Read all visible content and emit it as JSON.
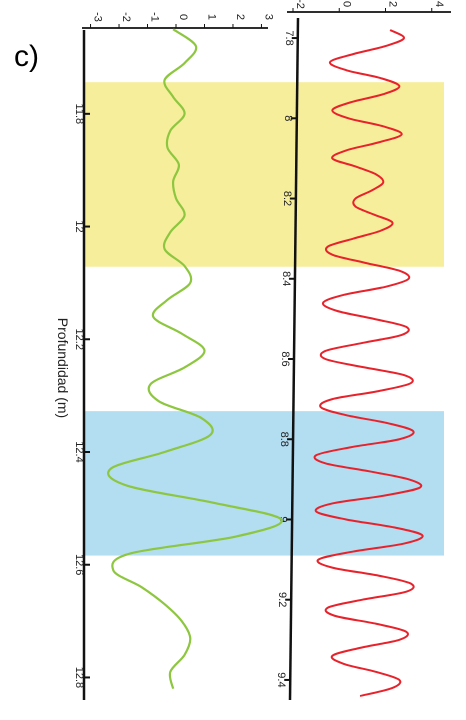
{
  "panel_label": "c)",
  "chart_data": [
    {
      "type": "line",
      "title": "",
      "orientation": "vertical-depth",
      "ylabel": "",
      "xlabel": "",
      "depth_range": [
        7.75,
        9.45
      ],
      "depth_ticks": [
        "7.8",
        "8",
        "8.2",
        "8.4",
        "8.6",
        "8.8",
        "9",
        "9.2",
        "9.4"
      ],
      "amplitude_range": [
        -2,
        4.4
      ],
      "amplitude_ticks": [
        "-2",
        "0",
        "2",
        "4"
      ],
      "series": [
        {
          "color": "#e8222b",
          "x": [
            7.78,
            7.8,
            7.82,
            7.84,
            7.86,
            7.88,
            7.9,
            7.92,
            7.94,
            7.96,
            7.98,
            8.0,
            8.02,
            8.04,
            8.06,
            8.08,
            8.1,
            8.12,
            8.14,
            8.16,
            8.18,
            8.2,
            8.22,
            8.24,
            8.26,
            8.28,
            8.3,
            8.32,
            8.34,
            8.36,
            8.38,
            8.4,
            8.42,
            8.44,
            8.46,
            8.48,
            8.5,
            8.52,
            8.54,
            8.56,
            8.58,
            8.6,
            8.62,
            8.64,
            8.66,
            8.68,
            8.7,
            8.72,
            8.74,
            8.76,
            8.78,
            8.8,
            8.82,
            8.84,
            8.86,
            8.88,
            8.9,
            8.92,
            8.94,
            8.96,
            8.98,
            9.0,
            9.02,
            9.04,
            9.06,
            9.08,
            9.1,
            9.12,
            9.14,
            9.16,
            9.18,
            9.2,
            9.22,
            9.24,
            9.26,
            9.28,
            9.3,
            9.32,
            9.34,
            9.36,
            9.38,
            9.4,
            9.42,
            9.44
          ],
          "values": [
            2.2,
            2.8,
            2.0,
            0.6,
            -0.4,
            0.3,
            1.8,
            2.6,
            1.9,
            0.5,
            -0.3,
            0.4,
            1.9,
            2.7,
            1.7,
            0.3,
            -0.3,
            0.7,
            1.6,
            1.9,
            1.4,
            0.7,
            0.7,
            1.5,
            2.3,
            1.8,
            0.6,
            -0.5,
            -0.3,
            1.1,
            2.6,
            3.0,
            2.0,
            0.2,
            -0.7,
            -0.1,
            1.5,
            2.9,
            2.7,
            1.0,
            -0.6,
            -0.6,
            1.0,
            2.8,
            3.1,
            1.7,
            -0.3,
            -0.8,
            0.3,
            2.1,
            3.2,
            2.6,
            0.5,
            -1.0,
            -0.6,
            1.3,
            3.0,
            3.5,
            2.0,
            -0.3,
            -1.0,
            0.3,
            2.4,
            3.6,
            2.8,
            0.6,
            -0.9,
            -0.3,
            1.7,
            3.1,
            2.9,
            1.0,
            -0.5,
            -0.2,
            1.6,
            2.9,
            2.6,
            0.9,
            -0.3,
            0.2,
            1.6,
            2.6,
            2.3,
            0.9
          ]
        },
        {
          "color": "#8dc63f",
          "x": [
            11.65,
            11.68,
            11.71,
            11.74,
            11.77,
            11.8,
            11.83,
            11.86,
            11.89,
            11.92,
            11.95,
            11.98,
            12.01,
            12.04,
            12.07,
            12.1,
            12.13,
            12.16,
            12.19,
            12.22,
            12.25,
            12.28,
            12.31,
            12.34,
            12.37,
            12.4,
            12.43,
            12.46,
            12.49,
            12.52,
            12.55,
            12.58,
            12.61,
            12.64,
            12.67,
            12.7,
            12.73,
            12.76,
            12.79,
            12.82
          ],
          "values": [
            -0.1,
            0.7,
            0.3,
            -0.4,
            -0.1,
            0.3,
            -0.2,
            -0.3,
            0.1,
            -0.1,
            0.0,
            0.3,
            -0.2,
            -0.4,
            0.3,
            0.5,
            -0.3,
            -0.8,
            0.2,
            1.0,
            0.3,
            -0.9,
            -0.6,
            0.9,
            1.2,
            -0.4,
            -2.3,
            -1.7,
            1.3,
            3.7,
            2.1,
            -1.6,
            -2.2,
            -1.2,
            -0.4,
            0.2,
            0.5,
            0.3,
            -0.2,
            -0.1
          ]
        }
      ],
      "highlight_bands": [
        {
          "color": "#f7ee9c",
          "depth_from": 7.91,
          "depth_to": 8.37
        },
        {
          "color": "#b3ddf1",
          "depth_from": 8.73,
          "depth_to": 9.09
        }
      ]
    },
    {
      "type": "line",
      "title": "",
      "orientation": "vertical-depth",
      "xlabel": "Profundidad (m)",
      "depth_range": [
        11.63,
        12.84
      ],
      "depth_ticks": [
        "11.8",
        "12",
        "12.2",
        "12.4",
        "12.6",
        "12.8"
      ],
      "amplitude_range": [
        -3.3,
        3.3
      ],
      "amplitude_ticks": [
        "-3",
        "-2",
        "-1",
        "0",
        "1",
        "2",
        "3"
      ]
    }
  ]
}
